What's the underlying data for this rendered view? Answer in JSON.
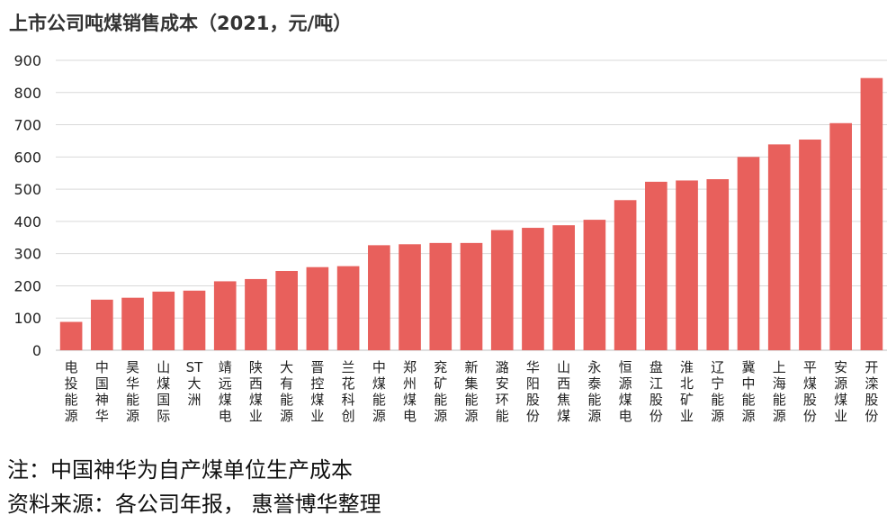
{
  "chart_data": {
    "type": "bar",
    "title": "上市公司吨煤销售成本（2021，元/吨）",
    "categories": [
      "电投能源",
      "中国神华",
      "昊华能源",
      "山煤国际",
      "ST大洲",
      "靖远煤电",
      "陕西煤业",
      "大有能源",
      "晋控煤业",
      "兰花科创",
      "中煤能源",
      "郑州煤电",
      "兖矿能源",
      "新集能源",
      "潞安环能",
      "华阳股份",
      "山西焦煤",
      "永泰能源",
      "恒源煤电",
      "盘江股份",
      "淮北矿业",
      "辽宁能源",
      "冀中能源",
      "上海能源",
      "平煤股份",
      "安源煤业",
      "开滦股份"
    ],
    "values": [
      88,
      157,
      163,
      182,
      185,
      214,
      221,
      246,
      258,
      261,
      326,
      329,
      333,
      333,
      373,
      380,
      388,
      405,
      466,
      523,
      527,
      531,
      600,
      639,
      654,
      705,
      845
    ],
    "ylim": [
      0,
      900
    ],
    "yticks": [
      0,
      100,
      200,
      300,
      400,
      500,
      600,
      700,
      800,
      900
    ],
    "grid": true,
    "bar_color": "#e8605c",
    "grid_color": "#d9d9d9"
  },
  "notes": {
    "note1": "注：中国神华为自产煤单位生产成本",
    "note2": "资料来源：各公司年报， 惠誉博华整理"
  }
}
